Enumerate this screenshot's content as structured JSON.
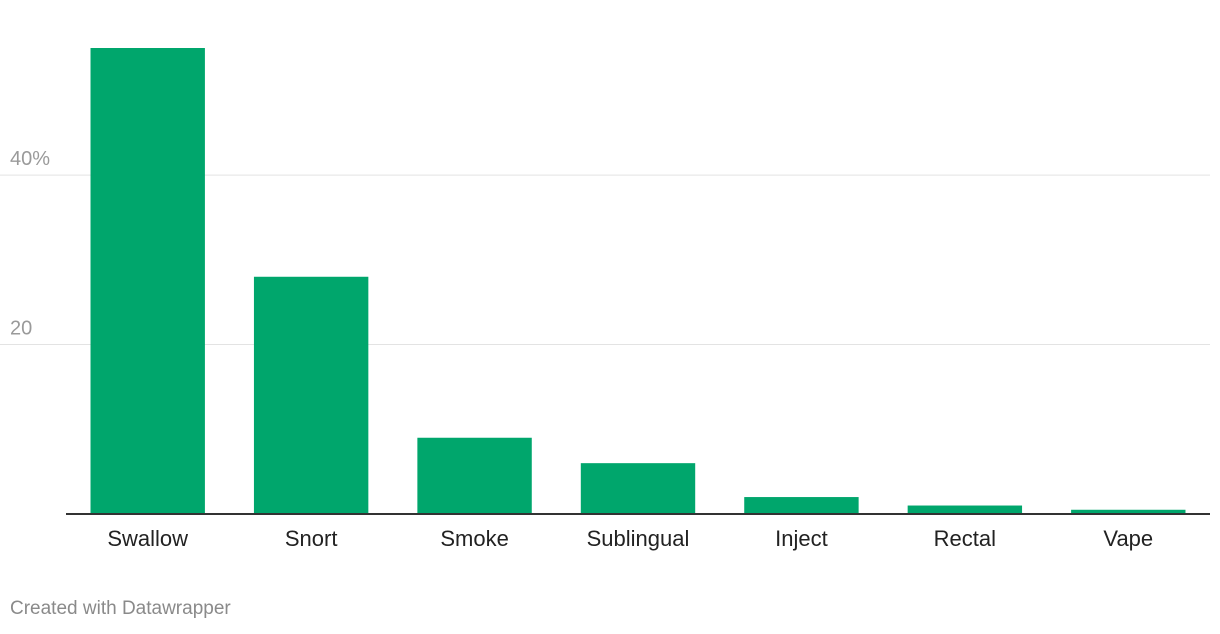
{
  "chart_data": {
    "type": "bar",
    "categories": [
      "Swallow",
      "Snort",
      "Smoke",
      "Sublingual",
      "Inject",
      "Rectal",
      "Vape"
    ],
    "values": [
      55,
      28,
      9,
      6,
      2,
      1,
      0.5
    ],
    "yticks": [
      {
        "value": 20,
        "label": "20"
      },
      {
        "value": 40,
        "label": "40%"
      }
    ],
    "ylim": [
      0,
      55
    ],
    "grid": true,
    "bar_color": "#00a66c"
  },
  "footer": {
    "credit": "Created with Datawrapper"
  }
}
